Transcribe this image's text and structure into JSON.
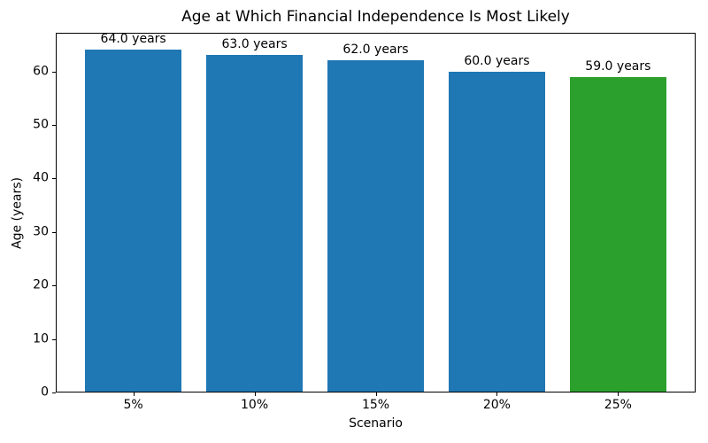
{
  "chart_data": {
    "type": "bar",
    "title": "Age at Which Financial Independence Is Most Likely",
    "xlabel": "Scenario",
    "ylabel": "Age (years)",
    "categories": [
      "5%",
      "10%",
      "15%",
      "20%",
      "25%"
    ],
    "values": [
      64.0,
      63.0,
      62.0,
      60.0,
      59.0
    ],
    "bar_labels": [
      "64.0 years",
      "63.0 years",
      "62.0 years",
      "60.0 years",
      "59.0 years"
    ],
    "bar_colors": [
      "#1f77b4",
      "#1f77b4",
      "#1f77b4",
      "#1f77b4",
      "#2ca02c"
    ],
    "ylim": [
      0,
      67.2
    ],
    "yticks": [
      0,
      10,
      20,
      30,
      40,
      50,
      60
    ],
    "bar_width_fraction": 0.8,
    "x_margin_units": 0.64,
    "grid": false,
    "legend": null,
    "axis_color": "#000000",
    "background_color": "#ffffff"
  }
}
